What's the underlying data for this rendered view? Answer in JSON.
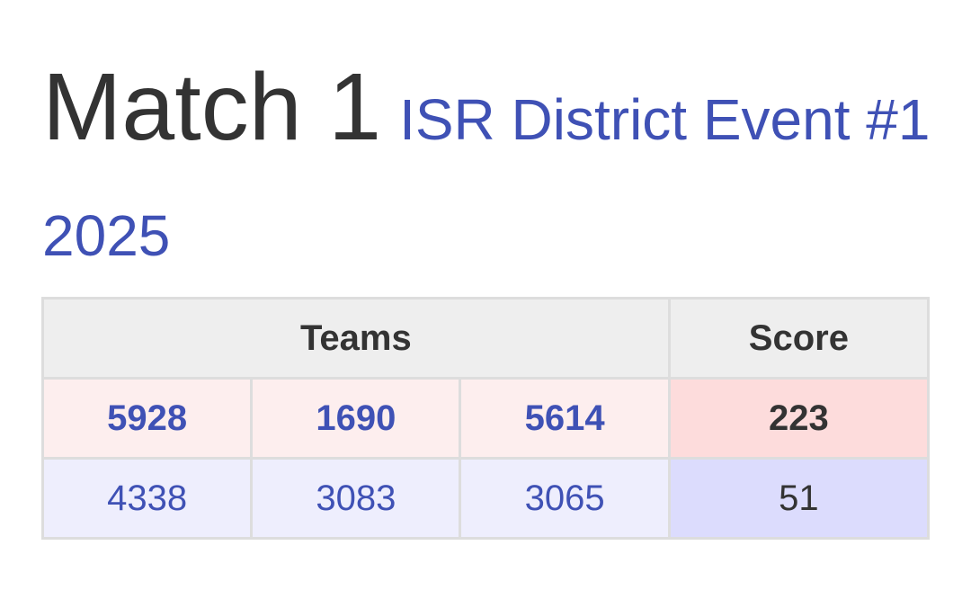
{
  "header": {
    "title": "Match 1",
    "event": "ISR District Event #1 2025"
  },
  "table": {
    "headers": [
      "Teams",
      "Score"
    ],
    "rows": [
      {
        "teams": [
          "5928",
          "1690",
          "5614"
        ],
        "score": "223"
      },
      {
        "teams": [
          "4338",
          "3083",
          "3065"
        ],
        "score": "51"
      }
    ]
  }
}
